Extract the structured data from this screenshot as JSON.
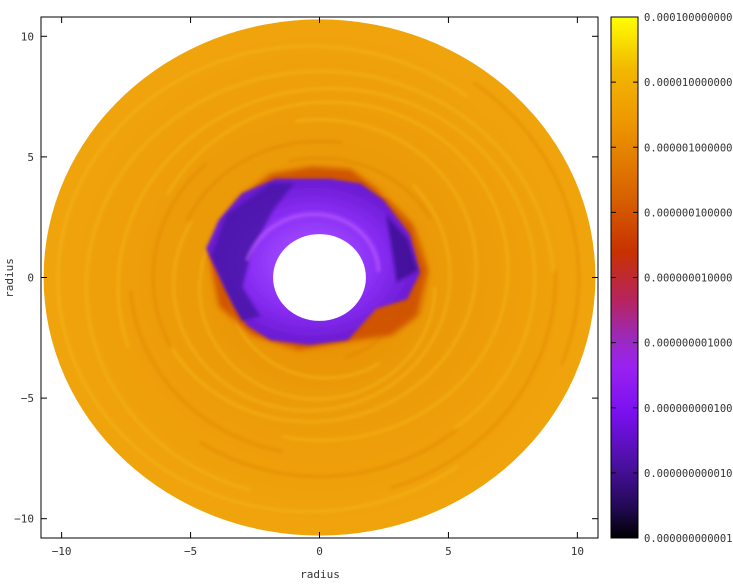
{
  "chart_data": {
    "type": "heatmap",
    "title": "",
    "xlabel": "radius",
    "ylabel": "radius",
    "xlim": [
      -10.8,
      10.8
    ],
    "ylim": [
      -10.8,
      10.8
    ],
    "x_ticks": [
      -10,
      -5,
      0,
      5,
      10
    ],
    "y_ticks": [
      -10,
      -5,
      0,
      5,
      10
    ],
    "x_tick_labels": [
      "−10",
      "−5",
      "0",
      "5",
      "10"
    ],
    "y_tick_labels": [
      "−10",
      "−5",
      "0",
      "5",
      "10"
    ],
    "disk": {
      "inner_radius": 1.8,
      "outer_radius": 10.7
    },
    "colorbar": {
      "scale": "log",
      "range": [
        1e-12,
        0.0001
      ],
      "tick_values": [
        1e-12,
        1e-11,
        1e-10,
        1e-09,
        1e-08,
        1e-07,
        1e-06,
        1e-05,
        0.0001
      ],
      "tick_labels": [
        "0.000000000001",
        "0.000000000010",
        "0.000000000100",
        "0.000000001000",
        "0.000000010000",
        "0.000000100000",
        "0.000001000000",
        "0.000010000000",
        "0.000100000000"
      ],
      "colors": [
        "#000000",
        "#2a0f6a",
        "#6a10d0",
        "#a030f0",
        "#b82a50",
        "#d25000",
        "#e07a00",
        "#f0a000",
        "#f2c800",
        "#ffff00"
      ]
    },
    "grid": false,
    "legend": "none"
  }
}
